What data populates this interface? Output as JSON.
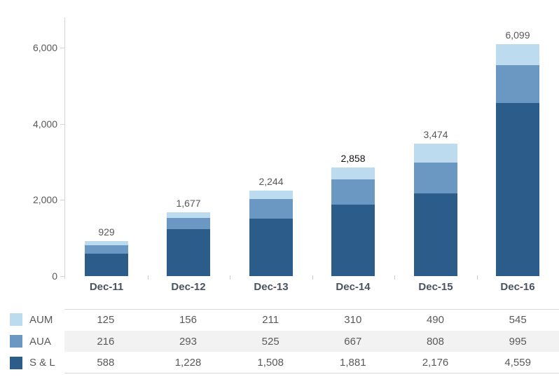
{
  "chart_data": {
    "type": "bar",
    "stacked": true,
    "title": "",
    "xlabel": "",
    "ylabel": "",
    "grid": false,
    "legend_position": "table-left-bottom",
    "categories": [
      "Dec-11",
      "Dec-12",
      "Dec-13",
      "Dec-14",
      "Dec-15",
      "Dec-16"
    ],
    "series": [
      {
        "name": "AUM",
        "color": "#bddbef",
        "values": [
          125,
          156,
          211,
          310,
          490,
          545
        ],
        "values_formatted": [
          "125",
          "156",
          "211",
          "310",
          "490",
          "545"
        ]
      },
      {
        "name": "AUA",
        "color": "#6b98c2",
        "values": [
          216,
          293,
          525,
          667,
          808,
          995
        ],
        "values_formatted": [
          "216",
          "293",
          "525",
          "667",
          "808",
          "995"
        ]
      },
      {
        "name": "S & L",
        "color": "#2b5c8a",
        "values": [
          588,
          1228,
          1508,
          1881,
          2176,
          4559
        ],
        "values_formatted": [
          "588",
          "1,228",
          "1,508",
          "1,881",
          "2,176",
          "4,559"
        ]
      }
    ],
    "stack_order_bottom_to_top": [
      "S & L",
      "AUA",
      "AUM"
    ],
    "totals": [
      929,
      1677,
      2244,
      2858,
      3474,
      6099
    ],
    "totals_formatted": [
      "929",
      "1,677",
      "2,244",
      "2,858",
      "3,474",
      "6,099"
    ],
    "emphasized_total_index": 3,
    "y_axis": {
      "max": 6800,
      "ticks": [
        {
          "value": 0,
          "label": "0"
        },
        {
          "value": 2000,
          "label": "2,000"
        },
        {
          "value": 4000,
          "label": "4,000"
        },
        {
          "value": 6000,
          "label": "6,000"
        }
      ]
    }
  },
  "colors": {
    "background": "#ffffff",
    "axis_line": "#d3d3d3",
    "tick_mark": "#c9c9c9",
    "y_label_text": "#595959",
    "x_label_text": "#4a5260",
    "total_label_text": "#595959",
    "emphasized_total_text": "#111111",
    "table_text": "#595959",
    "table_border": "#d9d9d9",
    "table_stripe": "#f2f2f2"
  }
}
